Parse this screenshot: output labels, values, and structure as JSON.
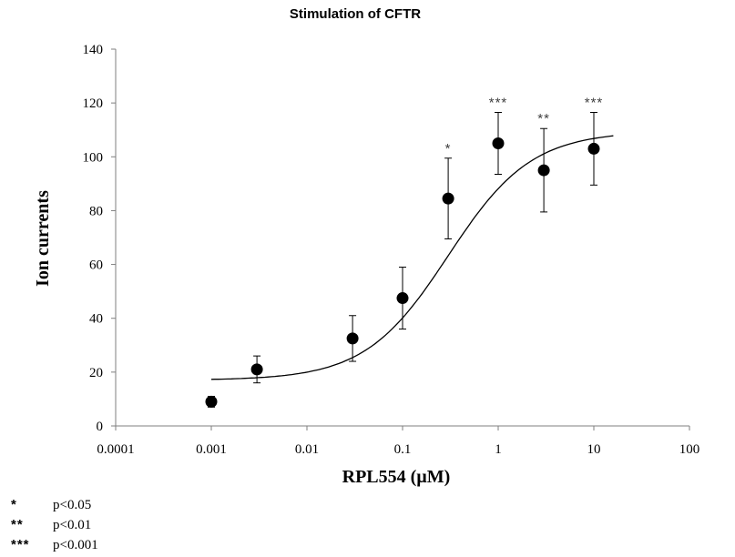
{
  "chart_data": {
    "type": "scatter",
    "title": "Stimulation of CFTR",
    "xlabel": "RPL554 (µM)",
    "ylabel": "Ion currents",
    "xscale": "log",
    "xlim": [
      0.0001,
      100
    ],
    "ylim": [
      0,
      140
    ],
    "x_tick_labels": [
      "0.0001",
      "0.001",
      "0.01",
      "0.1",
      "1",
      "10",
      "100"
    ],
    "y_tick_labels": [
      "0",
      "20",
      "40",
      "60",
      "80",
      "100",
      "120",
      "140"
    ],
    "grid": false,
    "points": [
      {
        "x": 0.001,
        "y": 9,
        "err": 2,
        "sig": ""
      },
      {
        "x": 0.003,
        "y": 21,
        "err": 5,
        "sig": ""
      },
      {
        "x": 0.03,
        "y": 32.5,
        "err": 8.5,
        "sig": ""
      },
      {
        "x": 0.1,
        "y": 47.5,
        "err": 11.5,
        "sig": ""
      },
      {
        "x": 0.3,
        "y": 84.5,
        "err": 15,
        "sig": "*"
      },
      {
        "x": 1,
        "y": 105,
        "err": 11.5,
        "sig": "***"
      },
      {
        "x": 3,
        "y": 95,
        "err": 15.5,
        "sig": "**"
      },
      {
        "x": 10,
        "y": 103,
        "err": 13.5,
        "sig": "***"
      }
    ],
    "fit_curve": {
      "description": "sigmoidal dose-response fit",
      "bottom": 17,
      "top": 109.5,
      "ec50": 0.3,
      "hill": 1.0,
      "x_range": [
        0.001,
        16
      ]
    }
  },
  "legend": [
    {
      "symbol": "*",
      "text": "p<0.05"
    },
    {
      "symbol": "**",
      "text": "p<0.01"
    },
    {
      "symbol": "***",
      "text": "p<0.001"
    }
  ]
}
